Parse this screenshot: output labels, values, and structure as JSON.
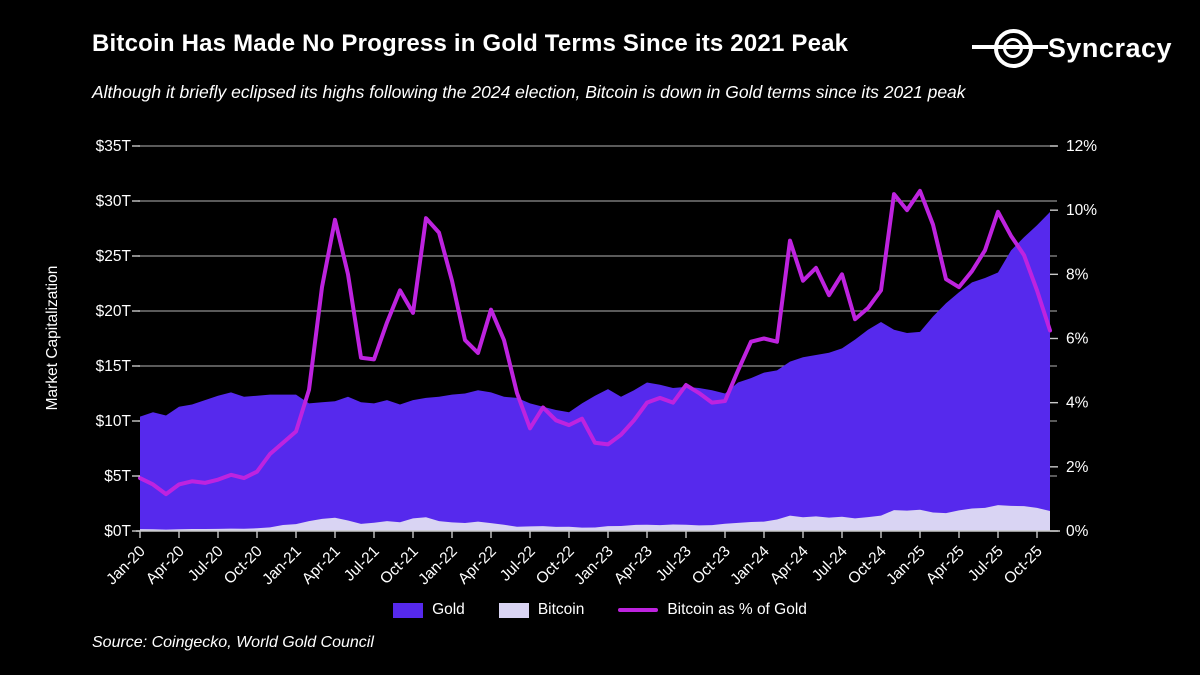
{
  "header": {
    "title": "Bitcoin Has Made No Progress in Gold Terms Since its 2021 Peak",
    "subtitle": "Although it briefly eclipsed its highs following the 2024 election, Bitcoin is down in Gold terms since its 2021 peak",
    "brand": "Syncracy"
  },
  "footer": {
    "source": "Source: Coingecko, World Gold Council"
  },
  "legend": {
    "items": [
      {
        "label": "Gold",
        "color": "#5629ED",
        "type": "area"
      },
      {
        "label": "Bitcoin",
        "color": "#D9D4F3",
        "type": "area"
      },
      {
        "label": "Bitcoin as % of Gold",
        "color": "#BE23DF",
        "type": "line"
      }
    ]
  },
  "colors": {
    "background": "#000000",
    "gold_area": "#5629ED",
    "bitcoin_area": "#D9D4F3",
    "pct_line": "#BE23DF",
    "gridline": "#8f8f8f",
    "axis": "#c9c9c9",
    "text": "#ffffff"
  },
  "chart_data": {
    "type": "area+line",
    "title": "Bitcoin Has Made No Progress in Gold Terms Since its 2021 Peak",
    "y_left": {
      "label": "Market Capitalization",
      "min": 0,
      "max": 35,
      "tick_step": 5,
      "ticks": [
        "$0T",
        "$5T",
        "$10T",
        "$15T",
        "$20T",
        "$25T",
        "$30T",
        "$35T"
      ]
    },
    "y_right": {
      "label": "",
      "min": 0,
      "max": 12,
      "tick_step": 2,
      "ticks": [
        "0%",
        "2%",
        "4%",
        "6%",
        "8%",
        "10%",
        "12%"
      ]
    },
    "x_tick_labels": [
      "Jan-20",
      "Apr-20",
      "Jul-20",
      "Oct-20",
      "Jan-21",
      "Apr-21",
      "Jul-21",
      "Oct-21",
      "Jan-22",
      "Apr-22",
      "Jul-22",
      "Oct-22",
      "Jan-23",
      "Apr-23",
      "Jul-23",
      "Oct-23",
      "Jan-24",
      "Apr-24",
      "Jul-24",
      "Oct-24",
      "Jan-25",
      "Apr-25",
      "Jul-25",
      "Oct-25"
    ],
    "months": [
      "Jan-20",
      "Feb-20",
      "Mar-20",
      "Apr-20",
      "May-20",
      "Jun-20",
      "Jul-20",
      "Aug-20",
      "Sep-20",
      "Oct-20",
      "Nov-20",
      "Dec-20",
      "Jan-21",
      "Feb-21",
      "Mar-21",
      "Apr-21",
      "May-21",
      "Jun-21",
      "Jul-21",
      "Aug-21",
      "Sep-21",
      "Oct-21",
      "Nov-21",
      "Dec-21",
      "Jan-22",
      "Feb-22",
      "Mar-22",
      "Apr-22",
      "May-22",
      "Jun-22",
      "Jul-22",
      "Aug-22",
      "Sep-22",
      "Oct-22",
      "Nov-22",
      "Dec-22",
      "Jan-23",
      "Feb-23",
      "Mar-23",
      "Apr-23",
      "May-23",
      "Jun-23",
      "Jul-23",
      "Aug-23",
      "Sep-23",
      "Oct-23",
      "Nov-23",
      "Dec-23",
      "Jan-24",
      "Feb-24",
      "Mar-24",
      "Apr-24",
      "May-24",
      "Jun-24",
      "Jul-24",
      "Aug-24",
      "Sep-24",
      "Oct-24",
      "Nov-24",
      "Dec-24",
      "Jan-25",
      "Feb-25",
      "Mar-25",
      "Apr-25",
      "May-25",
      "Jun-25",
      "Jul-25",
      "Aug-25",
      "Sep-25",
      "Oct-25",
      "Nov-25"
    ],
    "series": [
      {
        "name": "Gold",
        "unit": "$T",
        "style": "area",
        "values": [
          10.4,
          10.8,
          10.5,
          11.3,
          11.5,
          11.9,
          12.3,
          12.6,
          12.2,
          12.3,
          12.4,
          12.4,
          12.4,
          11.6,
          11.7,
          11.8,
          12.2,
          11.7,
          11.6,
          11.9,
          11.5,
          11.9,
          12.1,
          12.2,
          12.4,
          12.5,
          12.8,
          12.6,
          12.2,
          12.1,
          11.6,
          11.3,
          11.0,
          10.8,
          11.6,
          12.3,
          12.9,
          12.2,
          12.8,
          13.5,
          13.3,
          13.0,
          13.1,
          13.0,
          12.8,
          12.5,
          13.5,
          13.9,
          14.4,
          14.6,
          15.4,
          15.8,
          16.0,
          16.2,
          16.6,
          17.4,
          18.3,
          19.0,
          18.3,
          18.0,
          18.1,
          19.5,
          20.7,
          21.7,
          22.6,
          23.0,
          23.5,
          25.5,
          26.7,
          27.8,
          29.0
        ]
      },
      {
        "name": "Bitcoin",
        "unit": "$T",
        "style": "area",
        "values": [
          0.17,
          0.16,
          0.12,
          0.16,
          0.18,
          0.18,
          0.19,
          0.22,
          0.2,
          0.25,
          0.33,
          0.54,
          0.63,
          0.9,
          1.1,
          1.2,
          0.95,
          0.65,
          0.75,
          0.9,
          0.8,
          1.15,
          1.25,
          0.9,
          0.78,
          0.73,
          0.85,
          0.72,
          0.57,
          0.39,
          0.42,
          0.44,
          0.37,
          0.39,
          0.31,
          0.32,
          0.44,
          0.45,
          0.55,
          0.57,
          0.53,
          0.59,
          0.57,
          0.51,
          0.53,
          0.66,
          0.74,
          0.82,
          0.85,
          1.05,
          1.4,
          1.25,
          1.33,
          1.22,
          1.3,
          1.15,
          1.26,
          1.4,
          1.9,
          1.85,
          1.93,
          1.68,
          1.63,
          1.87,
          2.05,
          2.1,
          2.35,
          2.28,
          2.26,
          2.1,
          1.82
        ]
      },
      {
        "name": "Bitcoin as % of Gold",
        "unit": "%",
        "style": "line",
        "values": [
          1.65,
          1.45,
          1.15,
          1.45,
          1.55,
          1.5,
          1.6,
          1.75,
          1.65,
          1.85,
          2.4,
          2.75,
          3.1,
          4.4,
          7.6,
          9.7,
          8.0,
          5.4,
          5.35,
          6.5,
          7.5,
          6.8,
          9.75,
          9.3,
          7.8,
          5.95,
          5.55,
          6.9,
          5.95,
          4.3,
          3.2,
          3.85,
          3.45,
          3.3,
          3.5,
          2.75,
          2.7,
          3.0,
          3.45,
          4.0,
          4.15,
          4.0,
          4.55,
          4.3,
          4.0,
          4.05,
          5.0,
          5.9,
          6.0,
          5.9,
          9.05,
          7.8,
          8.2,
          7.35,
          8.0,
          6.6,
          6.95,
          7.5,
          10.5,
          10.0,
          10.6,
          9.55,
          7.85,
          7.6,
          8.1,
          8.75,
          9.95,
          9.2,
          8.6,
          7.5,
          6.25
        ]
      }
    ],
    "grid": true,
    "legend_position": "bottom"
  }
}
